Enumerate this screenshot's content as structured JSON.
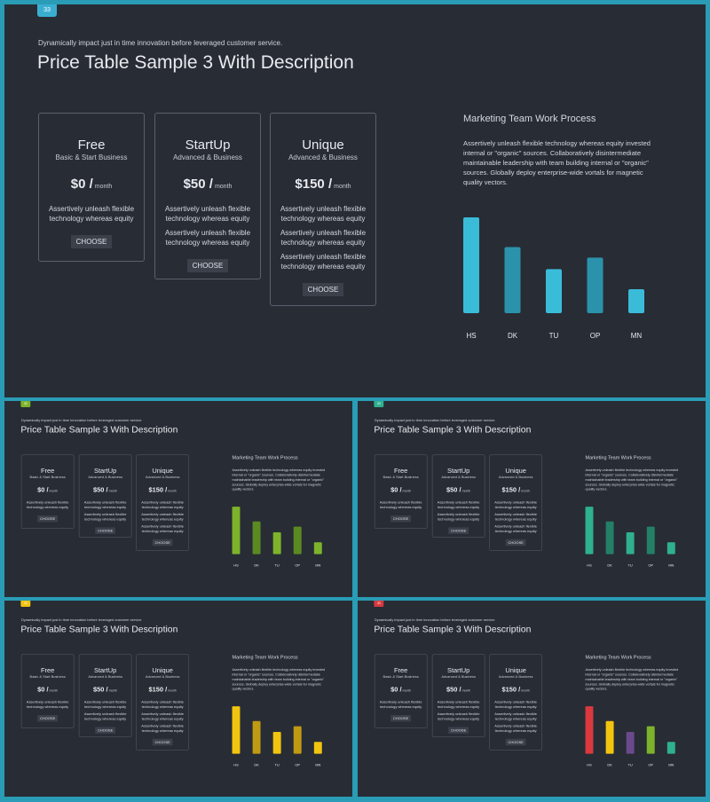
{
  "slide": {
    "subtitle": "Dynamically impact just in time innovation  before leveraged customer service.",
    "title": "Price Table Sample 3 With Description",
    "plans": [
      {
        "name": "Free",
        "subtitle": "Basic & Start Business",
        "price": "$0 /",
        "period": "month",
        "descriptions": [
          "Assertively unleash flexible technology whereas equity"
        ],
        "button": "CHOOSE"
      },
      {
        "name": "StartUp",
        "subtitle": "Advanced & Business",
        "price": "$50 /",
        "period": "month",
        "descriptions": [
          "Assertively unleash flexible technology whereas equity",
          "Assertively unleash flexible technology whereas equity"
        ],
        "button": "CHOOSE"
      },
      {
        "name": "Unique",
        "subtitle": "Advanced & Business",
        "price": "$150 /",
        "period": "month",
        "descriptions": [
          "Assertively unleash flexible technology whereas equity",
          "Assertively unleash flexible technology whereas equity",
          "Assertively unleash flexible technology whereas equity"
        ],
        "button": "CHOOSE"
      }
    ],
    "marketing": {
      "heading": "Marketing  Team Work Process",
      "text": "Assertively unleash flexible technology whereas equity invested internal or \"organic\" sources. Collaboratively disintermediate maintainable leadership with team building internal or \"organic\" sources. Globally deploy enterprise-wide vortals for magnetic quality vectors."
    }
  },
  "chart_data": {
    "type": "bar",
    "categories": [
      "HS",
      "DK",
      "TU",
      "OP",
      "MN"
    ],
    "values": [
      100,
      69,
      46,
      58,
      25
    ],
    "ylim": [
      0,
      100
    ]
  },
  "thumbnails": [
    {
      "page": "33",
      "theme": "blue",
      "badge_color": "#3aaed1",
      "bar_colors": [
        "#3abcd9",
        "#2a93ab",
        "#3abcd9",
        "#2a93ab",
        "#3abcd9"
      ]
    },
    {
      "page": "33",
      "theme": "green",
      "badge_color": "#7db32b",
      "bar_colors": [
        "#7db32b",
        "#5c8a22",
        "#7db32b",
        "#5c8a22",
        "#7db32b"
      ]
    },
    {
      "page": "33",
      "theme": "teal",
      "badge_color": "#2fb08e",
      "bar_colors": [
        "#2fb08e",
        "#238066",
        "#2fb08e",
        "#238066",
        "#2fb08e"
      ]
    },
    {
      "page": "33",
      "theme": "yellow",
      "badge_color": "#f1c40f",
      "bar_colors": [
        "#f1c40f",
        "#bf9a12",
        "#f1c40f",
        "#bf9a12",
        "#f1c40f"
      ]
    },
    {
      "page": "33",
      "theme": "multicolor",
      "badge_color": "#d9393f",
      "bar_colors": [
        "#d9393f",
        "#f1c40f",
        "#6a4a8c",
        "#7db32b",
        "#2fb08e"
      ]
    }
  ]
}
